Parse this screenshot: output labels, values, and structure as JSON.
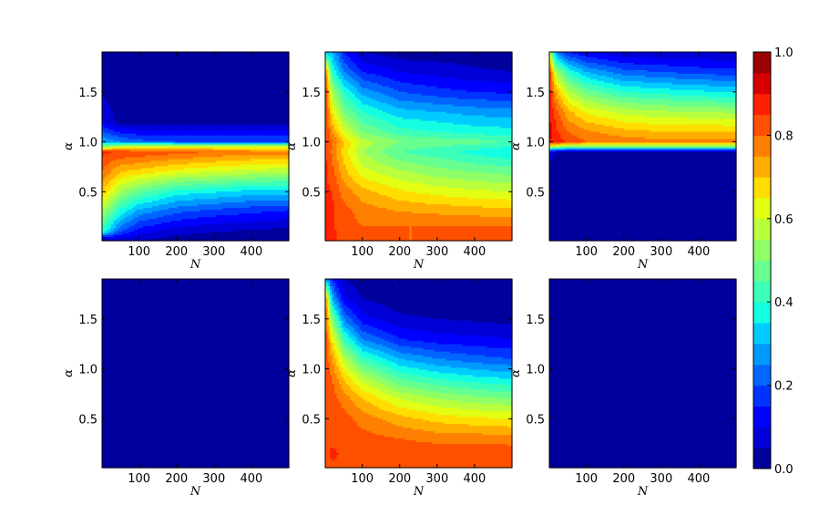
{
  "chart_data": {
    "type": "heatmap",
    "layout": "2x3 grid of filled contour plots sharing one colorbar",
    "colormap": "jet",
    "contour_levels": 20,
    "panels": [
      {
        "panel": "top-left",
        "xlabel": "N",
        "ylabel": "α",
        "xlim": [
          1,
          500
        ],
        "ylim": [
          0.01,
          1.9
        ],
        "xticks": [
          "100",
          "200",
          "300",
          "400"
        ],
        "yticks": [
          "0.5",
          "1.0",
          "1.5"
        ],
        "grid": {
          "x": [
            1,
            50,
            100,
            200,
            300,
            400,
            500
          ],
          "y": [
            1.9,
            1.5,
            1.2,
            1.0,
            0.95,
            0.9,
            0.7,
            0.5,
            0.3,
            0.1,
            0.01
          ],
          "z": [
            [
              0.02,
              0.02,
              0.02,
              0.02,
              0.02,
              0.02,
              0.02
            ],
            [
              0.04,
              0.02,
              0.02,
              0.02,
              0.02,
              0.02,
              0.02
            ],
            [
              0.1,
              0.03,
              0.02,
              0.02,
              0.02,
              0.02,
              0.02
            ],
            [
              0.3,
              0.25,
              0.22,
              0.2,
              0.2,
              0.2,
              0.2
            ],
            [
              0.55,
              0.6,
              0.62,
              0.62,
              0.62,
              0.62,
              0.62
            ],
            [
              0.86,
              0.85,
              0.84,
              0.82,
              0.8,
              0.78,
              0.78
            ],
            [
              0.8,
              0.7,
              0.68,
              0.63,
              0.6,
              0.58,
              0.56
            ],
            [
              0.7,
              0.55,
              0.47,
              0.38,
              0.36,
              0.33,
              0.33
            ],
            [
              0.55,
              0.38,
              0.28,
              0.21,
              0.18,
              0.16,
              0.14
            ],
            [
              0.4,
              0.2,
              0.12,
              0.07,
              0.05,
              0.04,
              0.03
            ],
            [
              0.0,
              0.05,
              0.05,
              0.02,
              0.02,
              0.02,
              0.02
            ]
          ]
        }
      },
      {
        "panel": "top-middle",
        "xlabel": "N",
        "ylabel": "α",
        "xlim": [
          1,
          500
        ],
        "ylim": [
          0.01,
          1.9
        ],
        "xticks": [
          "100",
          "200",
          "300",
          "400"
        ],
        "yticks": [
          "0.5",
          "1.0",
          "1.5"
        ],
        "grid": {
          "x": [
            1,
            20,
            50,
            100,
            200,
            300,
            400,
            500
          ],
          "y": [
            1.9,
            1.7,
            1.5,
            1.3,
            1.1,
            1.0,
            0.9,
            0.7,
            0.5,
            0.3,
            0.15,
            0.01
          ],
          "z": [
            [
              0.3,
              0.3,
              0.15,
              0.05,
              0.02,
              0.02,
              0.02,
              0.02
            ],
            [
              0.8,
              0.4,
              0.25,
              0.15,
              0.1,
              0.08,
              0.06,
              0.05
            ],
            [
              0.86,
              0.55,
              0.4,
              0.28,
              0.2,
              0.17,
              0.15,
              0.14
            ],
            [
              0.86,
              0.65,
              0.5,
              0.4,
              0.32,
              0.3,
              0.28,
              0.27
            ],
            [
              0.86,
              0.75,
              0.62,
              0.5,
              0.42,
              0.4,
              0.38,
              0.37
            ],
            [
              0.86,
              0.8,
              0.7,
              0.58,
              0.5,
              0.48,
              0.47,
              0.44
            ],
            [
              0.86,
              0.78,
              0.68,
              0.55,
              0.45,
              0.42,
              0.38,
              0.35
            ],
            [
              0.86,
              0.82,
              0.72,
              0.62,
              0.56,
              0.52,
              0.5,
              0.48
            ],
            [
              0.86,
              0.85,
              0.78,
              0.72,
              0.66,
              0.63,
              0.61,
              0.6
            ],
            [
              0.88,
              0.86,
              0.82,
              0.78,
              0.75,
              0.74,
              0.73,
              0.72
            ],
            [
              0.9,
              0.86,
              0.82,
              0.8,
              0.8,
              0.8,
              0.8,
              0.8
            ],
            [
              0.86,
              0.86,
              0.84,
              0.8,
              0.8,
              0.8,
              0.8,
              0.8
            ]
          ]
        }
      },
      {
        "panel": "top-right",
        "xlabel": "N",
        "ylabel": "α",
        "xlim": [
          1,
          500
        ],
        "ylim": [
          0.01,
          1.9
        ],
        "xticks": [
          "100",
          "200",
          "300",
          "400"
        ],
        "yticks": [
          "0.5",
          "1.0",
          "1.5"
        ],
        "grid": {
          "x": [
            1,
            20,
            50,
            100,
            200,
            300,
            400,
            500
          ],
          "y": [
            1.9,
            1.7,
            1.5,
            1.3,
            1.1,
            1.0,
            0.95,
            0.9,
            0.7,
            0.01
          ],
          "z": [
            [
              0.6,
              0.25,
              0.15,
              0.1,
              0.06,
              0.05,
              0.05,
              0.04
            ],
            [
              0.85,
              0.55,
              0.4,
              0.3,
              0.22,
              0.2,
              0.18,
              0.17
            ],
            [
              0.88,
              0.72,
              0.58,
              0.48,
              0.4,
              0.38,
              0.36,
              0.35
            ],
            [
              0.9,
              0.82,
              0.72,
              0.64,
              0.58,
              0.56,
              0.55,
              0.54
            ],
            [
              0.92,
              0.86,
              0.8,
              0.76,
              0.72,
              0.7,
              0.7,
              0.7
            ],
            [
              0.9,
              0.88,
              0.84,
              0.8,
              0.78,
              0.77,
              0.77,
              0.77
            ],
            [
              0.6,
              0.55,
              0.5,
              0.5,
              0.5,
              0.5,
              0.5,
              0.5
            ],
            [
              0.08,
              0.05,
              0.03,
              0.02,
              0.02,
              0.02,
              0.02,
              0.02
            ],
            [
              0.02,
              0.02,
              0.02,
              0.02,
              0.02,
              0.02,
              0.02,
              0.02
            ],
            [
              0.02,
              0.02,
              0.02,
              0.02,
              0.02,
              0.02,
              0.02,
              0.02
            ]
          ]
        }
      },
      {
        "panel": "bottom-left",
        "xlabel": "N",
        "ylabel": "α",
        "xlim": [
          1,
          500
        ],
        "ylim": [
          0.01,
          1.9
        ],
        "xticks": [
          "100",
          "200",
          "300",
          "400"
        ],
        "yticks": [
          "0.5",
          "1.0",
          "1.5"
        ],
        "grid": {
          "x": [
            1,
            500
          ],
          "y": [
            1.9,
            0.01
          ],
          "z": [
            [
              0.02,
              0.02
            ],
            [
              0.02,
              0.02
            ]
          ]
        }
      },
      {
        "panel": "bottom-middle",
        "xlabel": "N",
        "ylabel": "α",
        "xlim": [
          1,
          500
        ],
        "ylim": [
          0.01,
          1.9
        ],
        "xticks": [
          "100",
          "200",
          "300",
          "400"
        ],
        "yticks": [
          "0.5",
          "1.0",
          "1.5"
        ],
        "grid": {
          "x": [
            1,
            20,
            50,
            100,
            200,
            300,
            400,
            500
          ],
          "y": [
            1.9,
            1.7,
            1.5,
            1.3,
            1.1,
            0.9,
            0.7,
            0.5,
            0.3,
            0.15,
            0.01
          ],
          "z": [
            [
              0.3,
              0.15,
              0.05,
              0.02,
              0.02,
              0.02,
              0.02,
              0.02
            ],
            [
              0.8,
              0.3,
              0.12,
              0.05,
              0.02,
              0.02,
              0.02,
              0.02
            ],
            [
              0.84,
              0.5,
              0.25,
              0.12,
              0.06,
              0.05,
              0.04,
              0.03
            ],
            [
              0.84,
              0.65,
              0.42,
              0.25,
              0.15,
              0.12,
              0.11,
              0.1
            ],
            [
              0.84,
              0.75,
              0.58,
              0.42,
              0.3,
              0.25,
              0.22,
              0.2
            ],
            [
              0.84,
              0.8,
              0.7,
              0.58,
              0.45,
              0.4,
              0.37,
              0.35
            ],
            [
              0.84,
              0.82,
              0.78,
              0.7,
              0.6,
              0.55,
              0.52,
              0.5
            ],
            [
              0.84,
              0.84,
              0.82,
              0.78,
              0.72,
              0.68,
              0.66,
              0.65
            ],
            [
              0.84,
              0.84,
              0.84,
              0.82,
              0.8,
              0.78,
              0.78,
              0.77
            ],
            [
              0.84,
              0.86,
              0.84,
              0.84,
              0.84,
              0.84,
              0.84,
              0.84
            ],
            [
              0.84,
              0.84,
              0.84,
              0.84,
              0.84,
              0.84,
              0.84,
              0.84
            ]
          ]
        }
      },
      {
        "panel": "bottom-right",
        "xlabel": "N",
        "ylabel": "α",
        "xlim": [
          1,
          500
        ],
        "ylim": [
          0.01,
          1.9
        ],
        "xticks": [
          "100",
          "200",
          "300",
          "400"
        ],
        "yticks": [
          "0.5",
          "1.0",
          "1.5"
        ],
        "grid": {
          "x": [
            1,
            500
          ],
          "y": [
            1.9,
            0.01
          ],
          "z": [
            [
              0.02,
              0.02
            ],
            [
              0.02,
              0.02
            ]
          ]
        }
      }
    ],
    "colorbar": {
      "range": [
        0.0,
        1.0
      ],
      "levels": 20,
      "tick_labels": [
        "0.0",
        "0.2",
        "0.4",
        "0.6",
        "0.8",
        "1.0"
      ],
      "tick_values": [
        0.0,
        0.2,
        0.4,
        0.6,
        0.8,
        1.0
      ],
      "placement": "right"
    }
  }
}
